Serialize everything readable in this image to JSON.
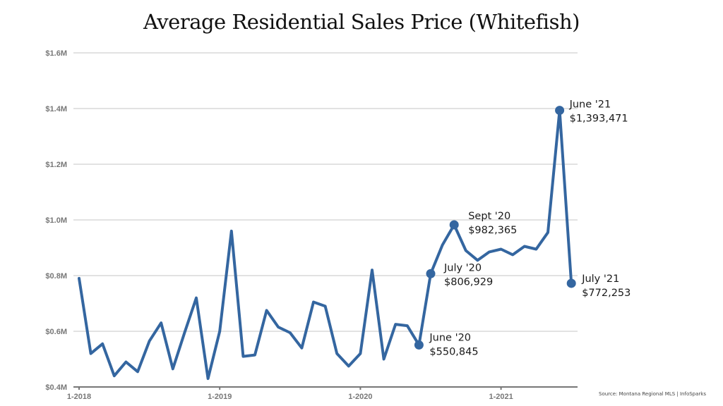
{
  "chart_data": {
    "type": "line",
    "title": "Average Residential Sales Price (Whitefish)",
    "xlabel": "",
    "ylabel": "",
    "ylim": [
      400000,
      1600000
    ],
    "yticks": [
      {
        "value": 400000,
        "label": "$0.4M"
      },
      {
        "value": 600000,
        "label": "$0.6M"
      },
      {
        "value": 800000,
        "label": "$0.8M"
      },
      {
        "value": 1000000,
        "label": "$1.0M"
      },
      {
        "value": 1200000,
        "label": "$1.2M"
      },
      {
        "value": 1400000,
        "label": "$1.4M"
      },
      {
        "value": 1600000,
        "label": "$1.6M"
      }
    ],
    "xticks": [
      {
        "index": 0,
        "label": "1-2018"
      },
      {
        "index": 12,
        "label": "1-2019"
      },
      {
        "index": 24,
        "label": "1-2020"
      },
      {
        "index": 36,
        "label": "1-2021"
      }
    ],
    "grid": true,
    "legend": "none",
    "x": [
      "2018-01",
      "2018-02",
      "2018-03",
      "2018-04",
      "2018-05",
      "2018-06",
      "2018-07",
      "2018-08",
      "2018-09",
      "2018-10",
      "2018-11",
      "2018-12",
      "2019-01",
      "2019-02",
      "2019-03",
      "2019-04",
      "2019-05",
      "2019-06",
      "2019-07",
      "2019-08",
      "2019-09",
      "2019-10",
      "2019-11",
      "2019-12",
      "2020-01",
      "2020-02",
      "2020-03",
      "2020-04",
      "2020-05",
      "2020-06",
      "2020-07",
      "2020-08",
      "2020-09",
      "2020-10",
      "2020-11",
      "2020-12",
      "2021-01",
      "2021-02",
      "2021-03",
      "2021-04",
      "2021-05",
      "2021-06",
      "2021-07"
    ],
    "series": [
      {
        "name": "Average Residential Sales Price",
        "color": "#3466a0",
        "values": [
          790000,
          520000,
          555000,
          440000,
          490000,
          455000,
          565000,
          630000,
          465000,
          595000,
          720000,
          430000,
          600000,
          960000,
          510000,
          515000,
          675000,
          615000,
          595000,
          540000,
          705000,
          690000,
          520000,
          475000,
          520000,
          820000,
          500000,
          625000,
          620000,
          550845,
          806929,
          910000,
          982365,
          890000,
          855000,
          885000,
          895000,
          875000,
          905000,
          895000,
          955000,
          1393471,
          772253
        ]
      }
    ],
    "annotations": [
      {
        "index": 29,
        "label": "June '20",
        "value_label": "$550,845"
      },
      {
        "index": 30,
        "label": "July '20",
        "value_label": "$806,929"
      },
      {
        "index": 32,
        "label": "Sept '20",
        "value_label": "$982,365"
      },
      {
        "index": 41,
        "label": "June '21",
        "value_label": "$1,393,471"
      },
      {
        "index": 42,
        "label": "July '21",
        "value_label": "$772,253"
      }
    ],
    "source": "Source: Montana Regional MLS | InfoSparks"
  }
}
